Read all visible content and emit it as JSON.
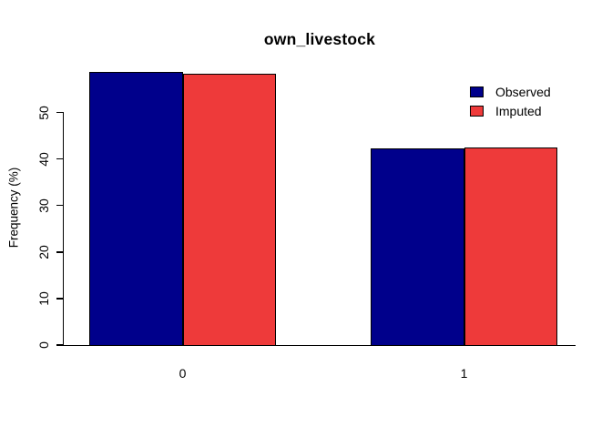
{
  "chart_data": {
    "type": "bar",
    "title": "own_livestock",
    "xlabel": "",
    "ylabel": "Frequency (%)",
    "categories": [
      "0",
      "1"
    ],
    "series": [
      {
        "name": "Observed",
        "color": "#00008B",
        "values": [
          58.8,
          42.2
        ]
      },
      {
        "name": "Imputed",
        "color": "#EE3A3A",
        "values": [
          58.3,
          42.5
        ]
      }
    ],
    "ylim": [
      0,
      50
    ],
    "yticks": [
      0,
      10,
      20,
      30,
      40,
      50
    ],
    "grid": false,
    "legend_position": "top-right",
    "bar_border_color": "#000000",
    "axis_color": "#000000",
    "background_color": "#FFFFFF"
  }
}
